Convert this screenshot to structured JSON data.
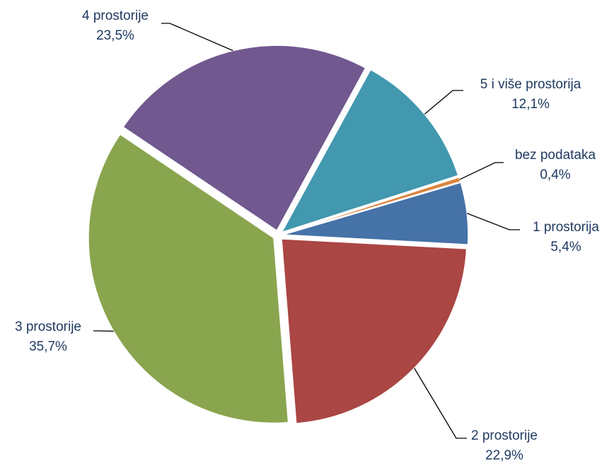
{
  "chart_data": {
    "type": "pie",
    "categories": [
      "1 prostorija",
      "2 prostorije",
      "3 prostorije",
      "4 prostorije",
      "5 i više prostorija",
      "bez podataka"
    ],
    "values": [
      5.4,
      22.9,
      35.7,
      23.5,
      12.1,
      0.4
    ],
    "value_labels": [
      "5,4%",
      "22,9%",
      "35,7%",
      "23,5%",
      "12,1%",
      "0,4%"
    ],
    "colors": [
      "#4572a7",
      "#aa4643",
      "#89a54e",
      "#71588f",
      "#4198af",
      "#db843d"
    ]
  }
}
